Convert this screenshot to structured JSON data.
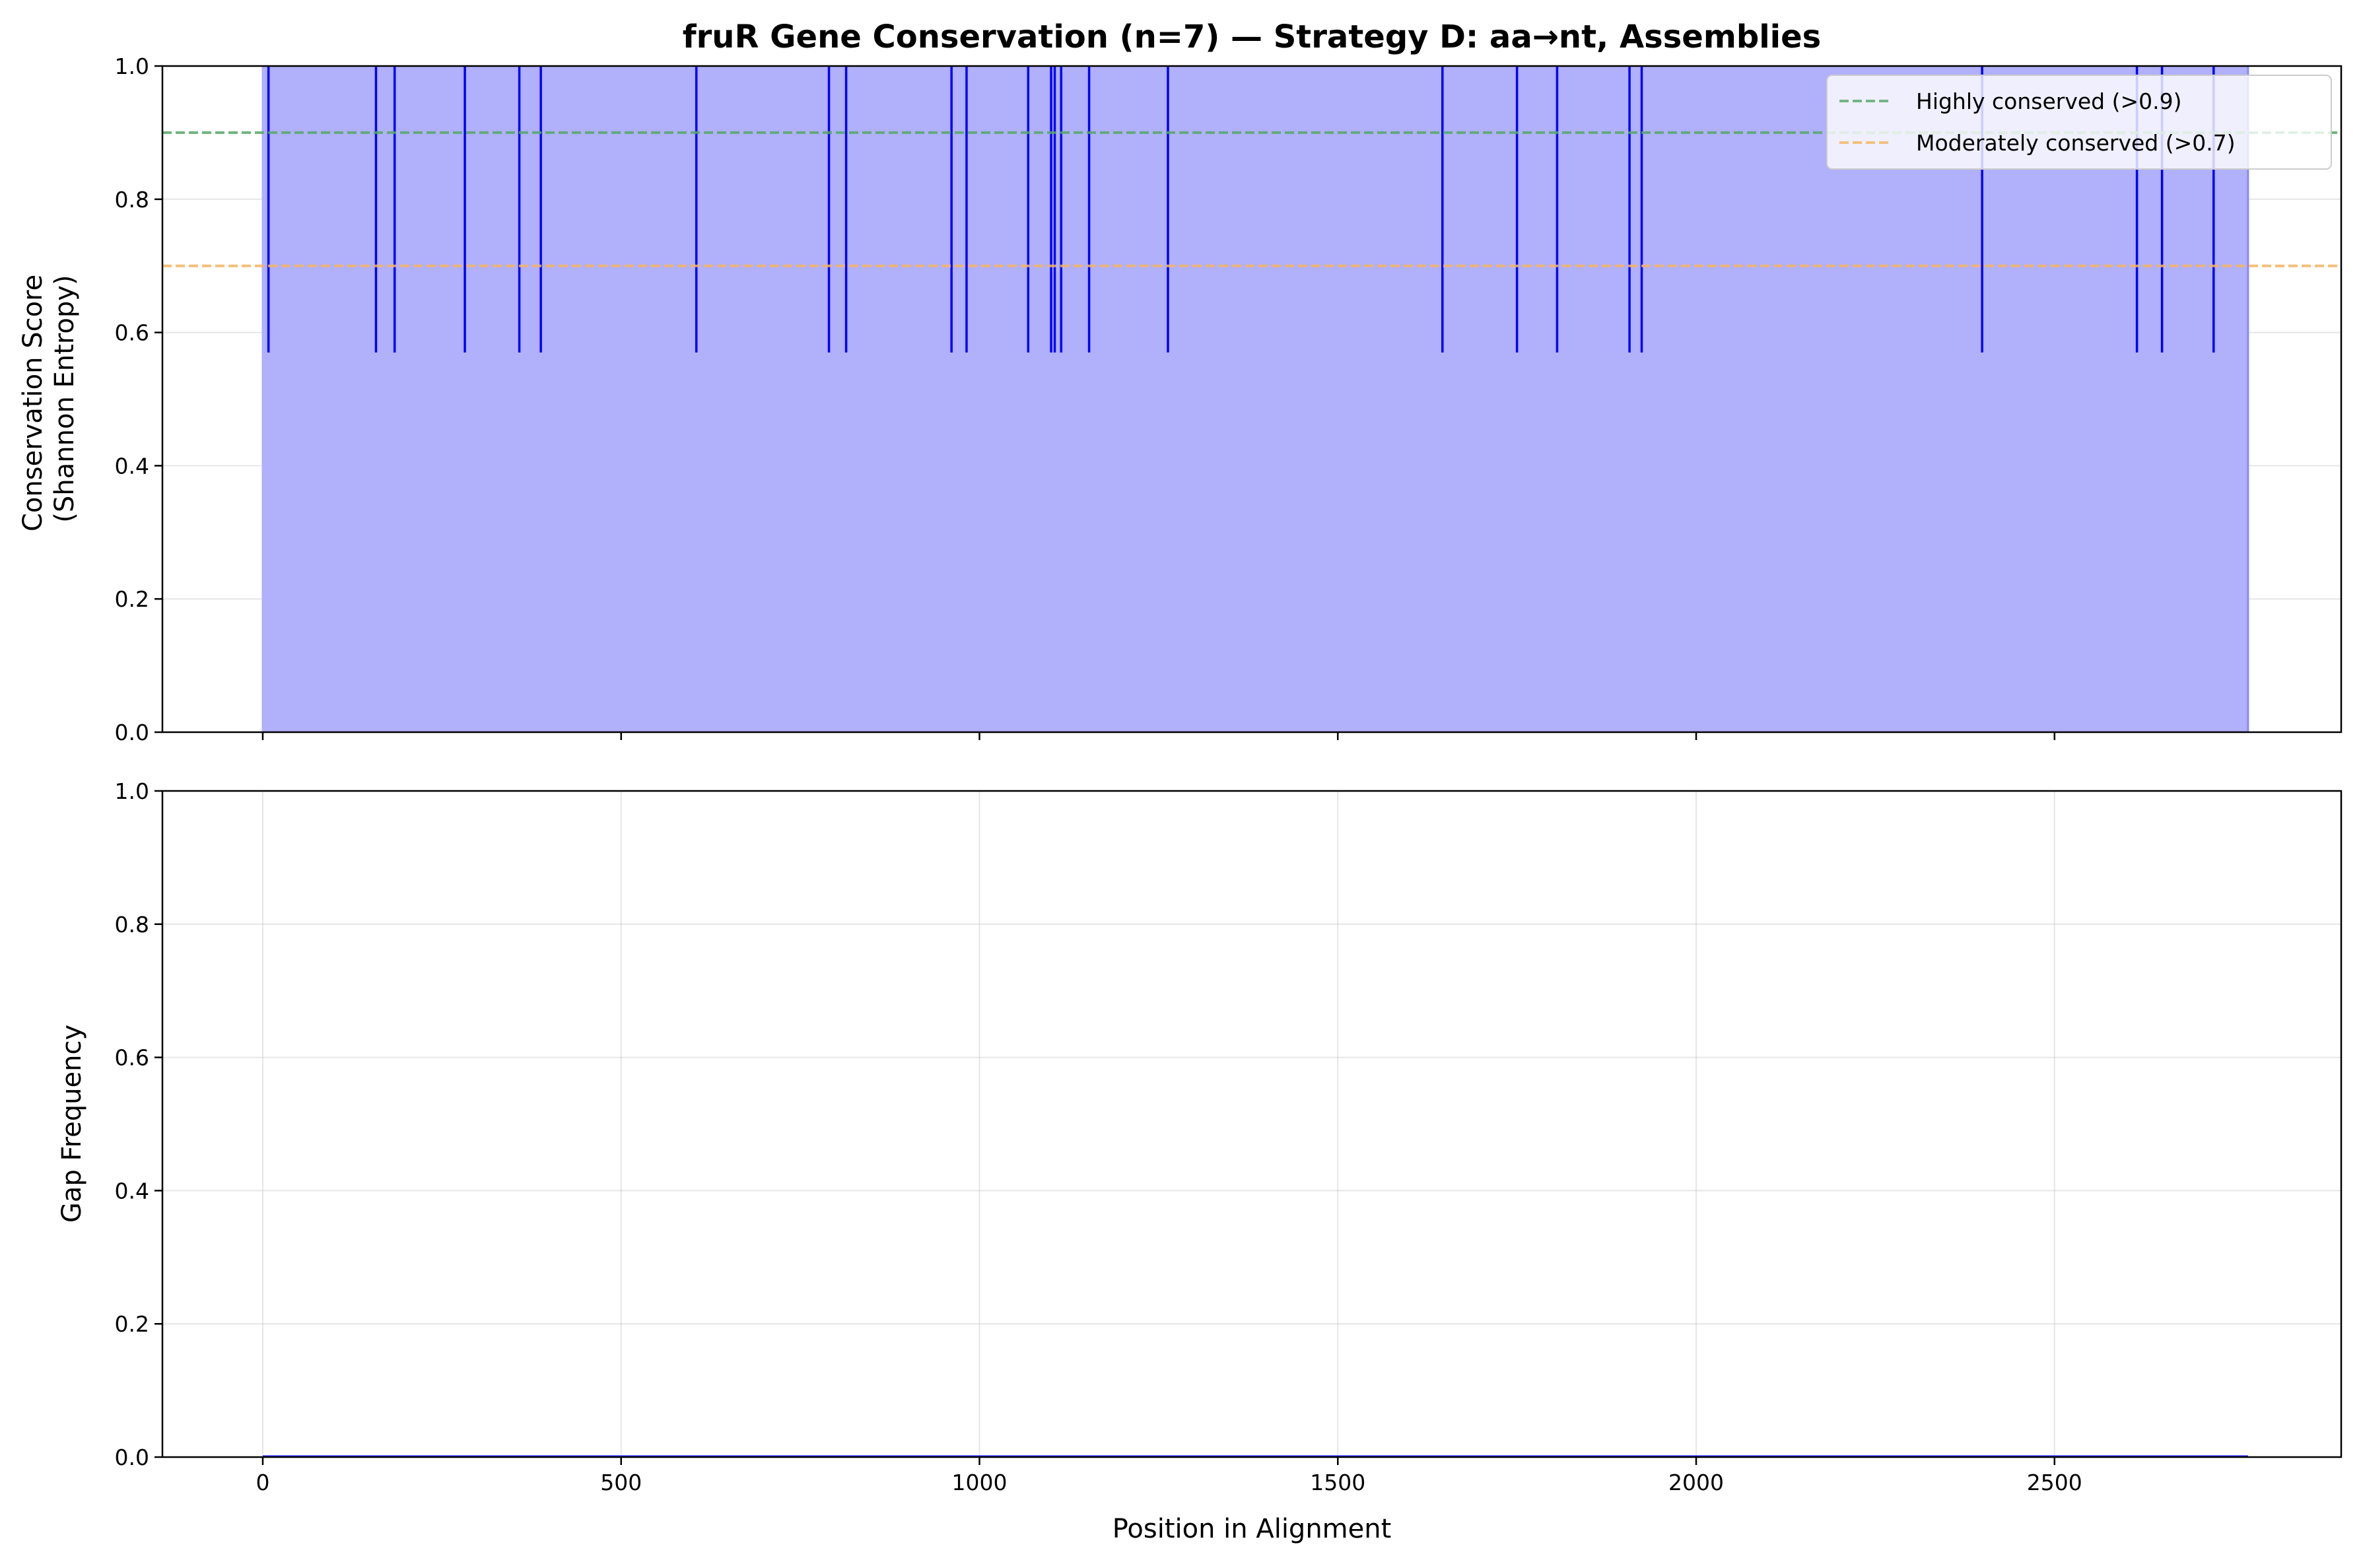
{
  "chart_data": [
    {
      "type": "area",
      "panel": "top",
      "title": "fruR Gene Conservation (n=7) — Strategy D: aa→nt, Assemblies",
      "xlabel": "",
      "ylabel_lines": [
        "Conservation Score",
        "(Shannon Entropy)"
      ],
      "xlim": [
        -140,
        2900
      ],
      "ylim": [
        0,
        1
      ],
      "xticks": [
        0,
        500,
        1000,
        1500,
        2000,
        2500
      ],
      "yticks": [
        0.0,
        0.2,
        0.4,
        0.6,
        0.8,
        1.0
      ],
      "ytick_labels": [
        "0.0",
        "0.2",
        "0.4",
        "0.6",
        "0.8",
        "1.0"
      ],
      "grid": true,
      "legend_position": "top-right",
      "baseline_score": 1.0,
      "dip_score": 0.57,
      "alignment_start": 0,
      "alignment_end": 2770,
      "dip_positions": [
        8,
        158,
        184,
        282,
        358,
        388,
        605,
        790,
        814,
        961,
        982,
        1068,
        1100,
        1105,
        1114,
        1153,
        1263,
        1646,
        1750,
        1806,
        1907,
        1924,
        2399,
        2615,
        2650,
        2722
      ],
      "fill_color": "#b0b0fb",
      "line_color": "#0000ff",
      "thresholds": [
        {
          "label": "Highly conserved (>0.9)",
          "value": 0.9,
          "color": "#55a868"
        },
        {
          "label": "Moderately conserved (>0.7)",
          "value": 0.7,
          "color": "#f5b55e"
        }
      ]
    },
    {
      "type": "area",
      "panel": "bottom",
      "title": "",
      "xlabel": "Position in Alignment",
      "ylabel": "Gap Frequency",
      "xlim": [
        -140,
        2900
      ],
      "ylim": [
        0,
        1
      ],
      "xticks": [
        0,
        500,
        1000,
        1500,
        2000,
        2500
      ],
      "xtick_labels": [
        "0",
        "500",
        "1000",
        "1500",
        "2000",
        "2500"
      ],
      "yticks": [
        0.0,
        0.2,
        0.4,
        0.6,
        0.8,
        1.0
      ],
      "ytick_labels": [
        "0.0",
        "0.2",
        "0.4",
        "0.6",
        "0.8",
        "1.0"
      ],
      "grid": true,
      "gap_frequency_value": 0.0,
      "alignment_start": 0,
      "alignment_end": 2770,
      "line_color": "#0000ff"
    }
  ]
}
